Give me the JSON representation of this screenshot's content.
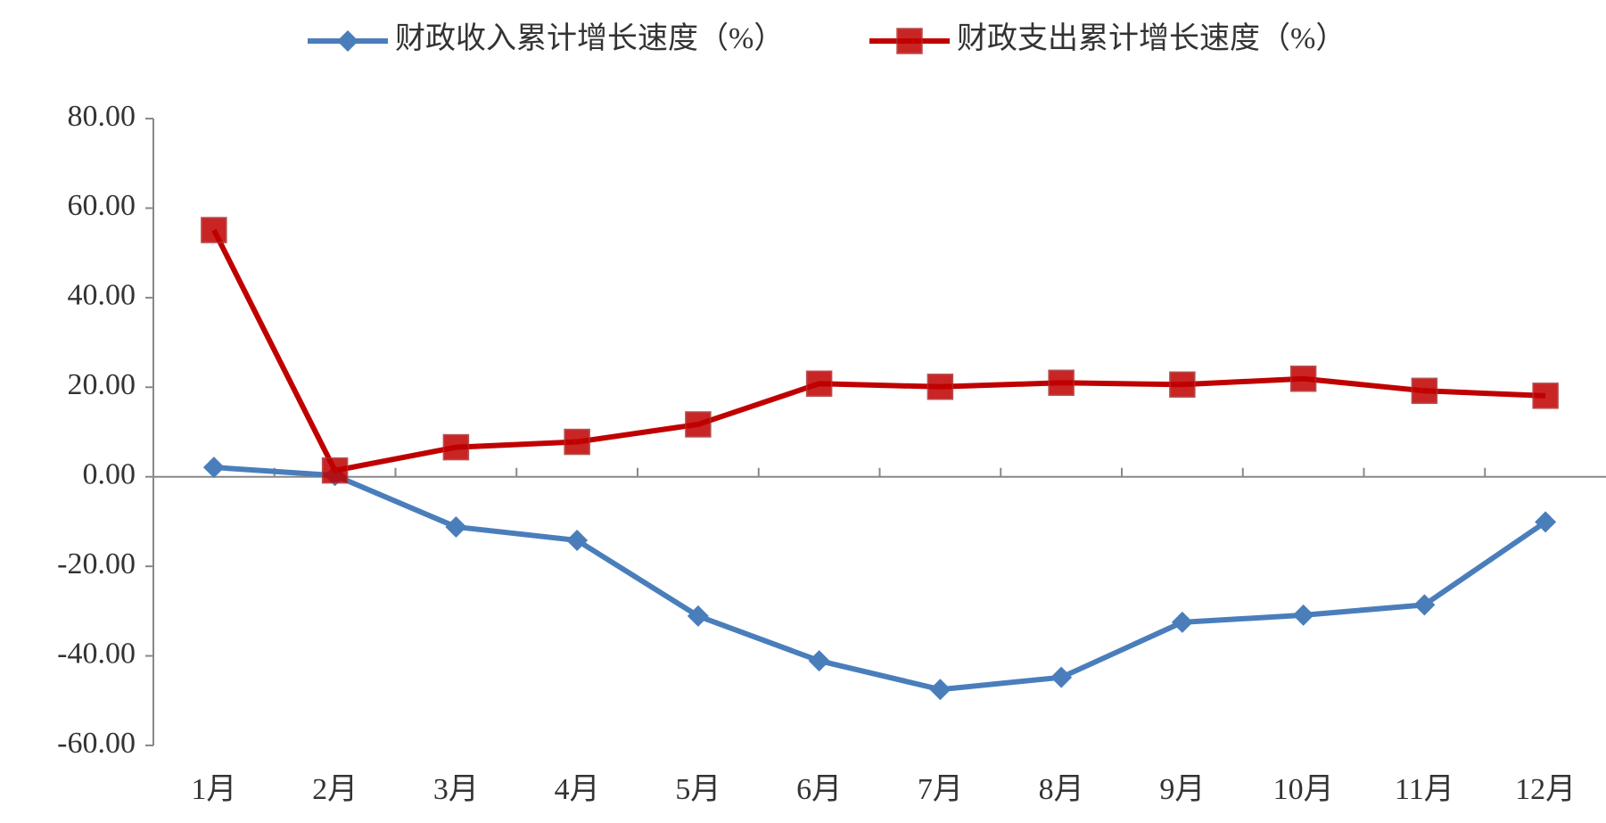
{
  "chart_data": {
    "type": "line",
    "categories": [
      "1月",
      "2月",
      "3月",
      "4月",
      "5月",
      "6月",
      "7月",
      "8月",
      "9月",
      "10月",
      "11月",
      "12月"
    ],
    "series": [
      {
        "name": "财政收入累计增长速度（%）",
        "color": "#4a7ebb",
        "marker": "diamond",
        "values": [
          2.1,
          0.3,
          -11.2,
          -14.2,
          -31.1,
          -41.1,
          -47.5,
          -44.8,
          -32.5,
          -30.9,
          -28.6,
          -10.1
        ]
      },
      {
        "name": "财政支出累计增长速度（%）",
        "color": "#c00000",
        "marker": "square",
        "values": [
          55.1,
          1.4,
          6.6,
          7.8,
          11.7,
          20.8,
          20.1,
          21.0,
          20.6,
          21.9,
          19.2,
          18.1
        ]
      }
    ],
    "ylim": [
      -60,
      80
    ],
    "yticks": [
      {
        "value": -60,
        "label": "-60.00"
      },
      {
        "value": -40,
        "label": "-40.00"
      },
      {
        "value": -20,
        "label": "-20.00"
      },
      {
        "value": 0,
        "label": "0.00"
      },
      {
        "value": 20,
        "label": "20.00"
      },
      {
        "value": 40,
        "label": "40.00"
      },
      {
        "value": 60,
        "label": "60.00"
      },
      {
        "value": 80,
        "label": "80.00"
      }
    ],
    "grid": false,
    "legend": "top"
  }
}
